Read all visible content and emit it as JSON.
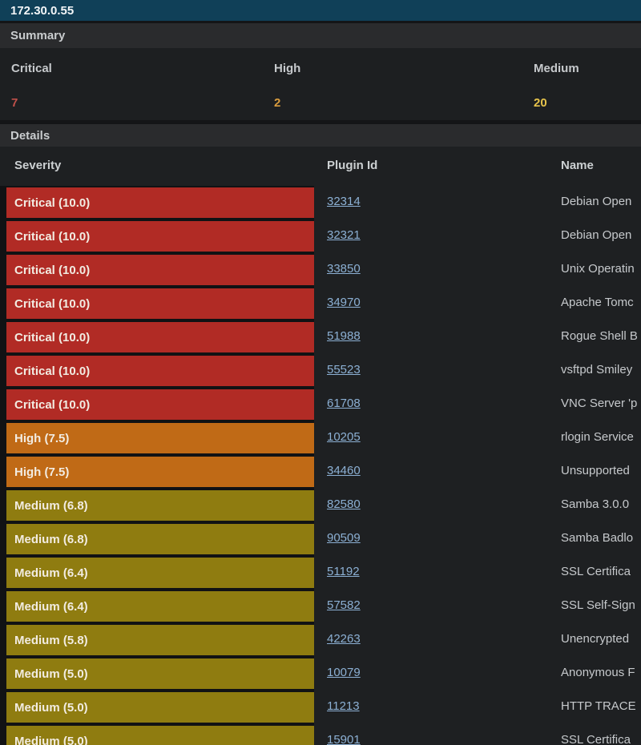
{
  "host": {
    "ip": "172.30.0.55"
  },
  "summary": {
    "title": "Summary",
    "columns": [
      {
        "label": "Critical",
        "count": "7",
        "color": "#c0504a"
      },
      {
        "label": "High",
        "count": "2",
        "color": "#d99c3e"
      },
      {
        "label": "Medium",
        "count": "20",
        "color": "#e6c34b"
      }
    ]
  },
  "details": {
    "title": "Details",
    "table": {
      "headers": [
        "Severity",
        "Plugin Id",
        "Name"
      ],
      "severity_colors": {
        "critical": "#b12b25",
        "high": "#c06a16",
        "medium": "#8f7c10"
      },
      "rows": [
        {
          "severity": "Critical (10.0)",
          "level": "critical",
          "plugin_id": "32314",
          "name": "Debian Open"
        },
        {
          "severity": "Critical (10.0)",
          "level": "critical",
          "plugin_id": "32321",
          "name": "Debian Open"
        },
        {
          "severity": "Critical (10.0)",
          "level": "critical",
          "plugin_id": "33850",
          "name": "Unix Operatin"
        },
        {
          "severity": "Critical (10.0)",
          "level": "critical",
          "plugin_id": "34970",
          "name": "Apache Tomc"
        },
        {
          "severity": "Critical (10.0)",
          "level": "critical",
          "plugin_id": "51988",
          "name": "Rogue Shell B"
        },
        {
          "severity": "Critical (10.0)",
          "level": "critical",
          "plugin_id": "55523",
          "name": "vsftpd Smiley"
        },
        {
          "severity": "Critical (10.0)",
          "level": "critical",
          "plugin_id": "61708",
          "name": "VNC Server 'p"
        },
        {
          "severity": "High (7.5)",
          "level": "high",
          "plugin_id": "10205",
          "name": "rlogin Service"
        },
        {
          "severity": "High (7.5)",
          "level": "high",
          "plugin_id": "34460",
          "name": "Unsupported"
        },
        {
          "severity": "Medium (6.8)",
          "level": "medium",
          "plugin_id": "82580",
          "name": "Samba 3.0.0"
        },
        {
          "severity": "Medium (6.8)",
          "level": "medium",
          "plugin_id": "90509",
          "name": "Samba Badlo"
        },
        {
          "severity": "Medium (6.4)",
          "level": "medium",
          "plugin_id": "51192",
          "name": "SSL Certifica"
        },
        {
          "severity": "Medium (6.4)",
          "level": "medium",
          "plugin_id": "57582",
          "name": "SSL Self-Sign"
        },
        {
          "severity": "Medium (5.8)",
          "level": "medium",
          "plugin_id": "42263",
          "name": "Unencrypted"
        },
        {
          "severity": "Medium (5.0)",
          "level": "medium",
          "plugin_id": "10079",
          "name": "Anonymous F"
        },
        {
          "severity": "Medium (5.0)",
          "level": "medium",
          "plugin_id": "11213",
          "name": "HTTP TRACE"
        },
        {
          "severity": "Medium (5.0)",
          "level": "medium",
          "plugin_id": "15901",
          "name": "SSL Certifica"
        }
      ]
    }
  },
  "colors": {
    "host_bar": "#104058",
    "plugin_link": "#8cb0d4"
  }
}
